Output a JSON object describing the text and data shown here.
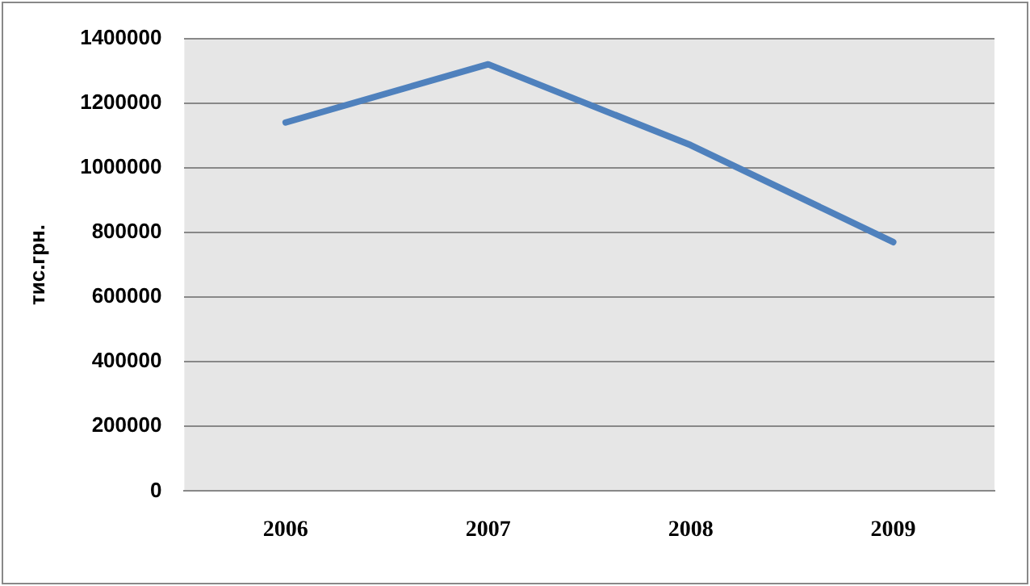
{
  "chart_data": {
    "type": "line",
    "ylabel": "тис.грн.",
    "categories": [
      "2006",
      "2007",
      "2008",
      "2009"
    ],
    "series": [
      {
        "color": "#4f81bd",
        "values": [
          1140000,
          1320000,
          1070000,
          770000
        ]
      }
    ],
    "ylim": [
      0,
      1400000
    ],
    "yticks": [
      0,
      200000,
      400000,
      600000,
      800000,
      1000000,
      1200000,
      1400000
    ],
    "grid": "y",
    "legend": false,
    "marker": "none",
    "line_style": "solid"
  }
}
